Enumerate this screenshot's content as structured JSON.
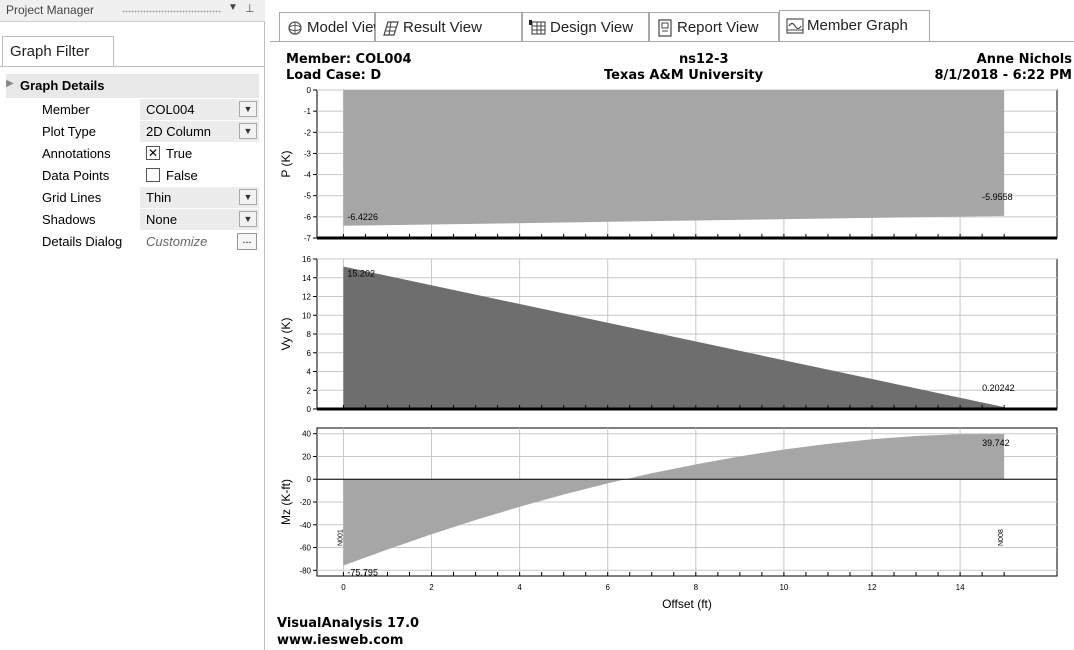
{
  "left_panel": {
    "header_title": "Project Manager",
    "tab_label": "Graph Filter",
    "section_title": "Graph Details",
    "properties": [
      {
        "name": "Member",
        "value": "COL004",
        "control": "dropdown",
        "shaded": true
      },
      {
        "name": "Plot Type",
        "value": "2D Column",
        "control": "dropdown",
        "shaded": true
      },
      {
        "name": "Annotations",
        "value": "True",
        "control": "checkbox",
        "checked": true
      },
      {
        "name": "Data Points",
        "value": "False",
        "control": "checkbox",
        "checked": false
      },
      {
        "name": "Grid Lines",
        "value": "Thin",
        "control": "dropdown",
        "shaded": true
      },
      {
        "name": "Shadows",
        "value": "None",
        "control": "dropdown",
        "shaded": true
      },
      {
        "name": "Details Dialog",
        "value": "Customize",
        "control": "button",
        "button_label": "..."
      }
    ]
  },
  "tabs": [
    {
      "label": "Model View",
      "icon": "model-view-icon",
      "active": false
    },
    {
      "label": "Result View",
      "icon": "result-view-icon",
      "active": false
    },
    {
      "label": "Design View",
      "icon": "design-view-icon",
      "active": false
    },
    {
      "label": "Report View",
      "icon": "report-view-icon",
      "active": false
    },
    {
      "label": "Member Graph",
      "icon": "member-graph-icon",
      "active": true
    }
  ],
  "chart_header": {
    "member": "Member: COL004",
    "load_case": "Load Case: D",
    "project": "ns12-3",
    "university": "Texas A&M University",
    "author": "Anne Nichols",
    "datetime": "8/1/2018 - 6:22 PM"
  },
  "footer": {
    "product": "VisualAnalysis 17.0",
    "url": "www.iesweb.com"
  },
  "colors": {
    "fill_light": "#a6a6a6",
    "fill_dark": "#6e6e6e",
    "grid": "#c8c8c8",
    "axis": "#000000"
  },
  "chart_data": [
    {
      "type": "area",
      "ylabel": "P (K)",
      "x": [
        0,
        15
      ],
      "y": [
        -6.4226,
        -5.9558
      ],
      "ylim": [
        -7,
        0
      ],
      "yticks": [
        "0",
        "-1",
        "-2",
        "-3",
        "-4",
        "-5",
        "-6",
        "-7"
      ],
      "annotations": [
        "-6.4226",
        "-5.9558"
      ],
      "fill": "light"
    },
    {
      "type": "area",
      "ylabel": "Vy (K)",
      "x": [
        0,
        15
      ],
      "y": [
        15.202,
        0.20242
      ],
      "ylim": [
        0,
        16
      ],
      "yticks": [
        "16",
        "14",
        "12",
        "10",
        "8",
        "6",
        "4",
        "2",
        "0"
      ],
      "annotations": [
        "15.202",
        "0.20242"
      ],
      "fill": "dark"
    },
    {
      "type": "area",
      "ylabel": "Mz (K-ft)",
      "x": [
        0,
        1,
        2,
        3,
        4,
        5,
        6,
        7,
        8,
        9,
        10,
        11,
        12,
        13,
        14,
        15
      ],
      "y": [
        -75.795,
        -61.7,
        -48.3,
        -35.8,
        -24.2,
        -13.4,
        -3.6,
        5.3,
        13.1,
        20.1,
        26.1,
        31.1,
        35.1,
        38.0,
        39.6,
        39.742
      ],
      "ylim": [
        -85,
        45
      ],
      "yticks": [
        "40",
        "20",
        "0",
        "-20",
        "-40",
        "-60",
        "-80"
      ],
      "annotations": [
        "-75.795",
        "39.742"
      ],
      "end_labels": [
        "N001",
        "N008"
      ],
      "fill": "light"
    }
  ],
  "x_axis": {
    "label": "Offset (ft)",
    "xlim": [
      -0.6,
      16.2
    ],
    "ticks": [
      "0",
      "2",
      "4",
      "6",
      "8",
      "10",
      "12",
      "14"
    ]
  }
}
